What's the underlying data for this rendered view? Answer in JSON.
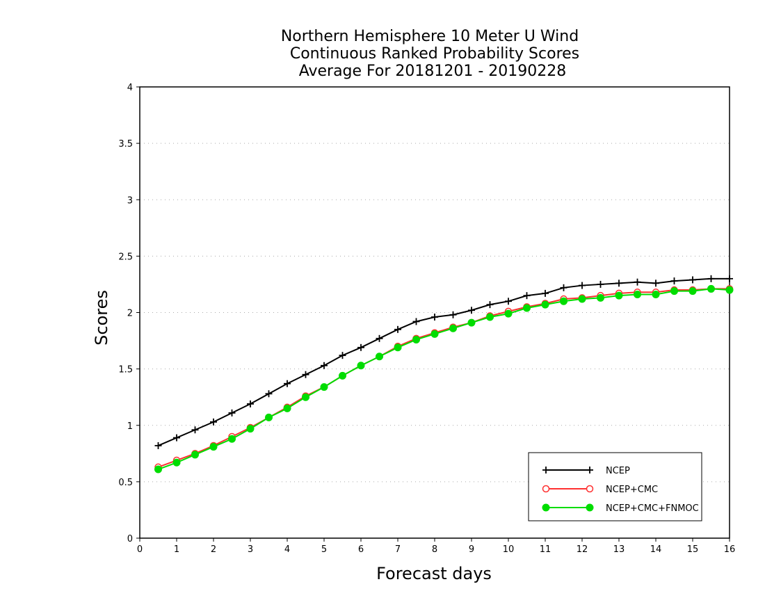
{
  "chart_data": {
    "type": "line",
    "title": [
      "Northern Hemisphere 10 Meter U Wind",
      "Continuous Ranked Probability Scores",
      "Average For 20181201 - 20190228"
    ],
    "xlabel": "Forecast days",
    "ylabel": "Scores",
    "xlim": [
      0,
      16
    ],
    "ylim": [
      0,
      4
    ],
    "xticks": [
      "0",
      "1",
      "2",
      "3",
      "4",
      "5",
      "6",
      "7",
      "8",
      "9",
      "10",
      "11",
      "12",
      "13",
      "14",
      "15",
      "16"
    ],
    "yticks": [
      "0",
      "0.5",
      "1",
      "1.5",
      "2",
      "2.5",
      "3",
      "3.5",
      "4"
    ],
    "grid": "horizontal dotted",
    "legend_position": "bottom-right",
    "x": [
      0.5,
      1,
      1.5,
      2,
      2.5,
      3,
      3.5,
      4,
      4.5,
      5,
      5.5,
      6,
      6.5,
      7,
      7.5,
      8,
      8.5,
      9,
      9.5,
      10,
      10.5,
      11,
      11.5,
      12,
      12.5,
      13,
      13.5,
      14,
      14.5,
      15,
      15.5,
      16
    ],
    "series": [
      {
        "name": "NCEP",
        "color": "#000000",
        "marker": "plus",
        "values": [
          0.82,
          0.89,
          0.96,
          1.03,
          1.11,
          1.19,
          1.28,
          1.37,
          1.45,
          1.53,
          1.62,
          1.69,
          1.77,
          1.85,
          1.92,
          1.96,
          1.98,
          2.02,
          2.07,
          2.1,
          2.15,
          2.17,
          2.22,
          2.24,
          2.25,
          2.26,
          2.27,
          2.26,
          2.28,
          2.29,
          2.3,
          2.3
        ]
      },
      {
        "name": "NCEP+CMC",
        "color": "#ff3030",
        "marker": "open-circle",
        "values": [
          0.63,
          0.69,
          0.75,
          0.82,
          0.9,
          0.98,
          1.07,
          1.16,
          1.26,
          1.34,
          1.44,
          1.53,
          1.61,
          1.7,
          1.77,
          1.82,
          1.87,
          1.91,
          1.97,
          2.01,
          2.05,
          2.08,
          2.12,
          2.13,
          2.15,
          2.17,
          2.18,
          2.18,
          2.2,
          2.2,
          2.21,
          2.21
        ]
      },
      {
        "name": "NCEP+CMC+FNMOC",
        "color": "#00dd00",
        "marker": "filled-circle",
        "values": [
          0.61,
          0.67,
          0.74,
          0.81,
          0.88,
          0.97,
          1.07,
          1.15,
          1.25,
          1.34,
          1.44,
          1.53,
          1.61,
          1.69,
          1.76,
          1.81,
          1.86,
          1.91,
          1.96,
          1.99,
          2.04,
          2.07,
          2.1,
          2.12,
          2.13,
          2.15,
          2.16,
          2.16,
          2.19,
          2.19,
          2.21,
          2.2
        ]
      }
    ]
  }
}
